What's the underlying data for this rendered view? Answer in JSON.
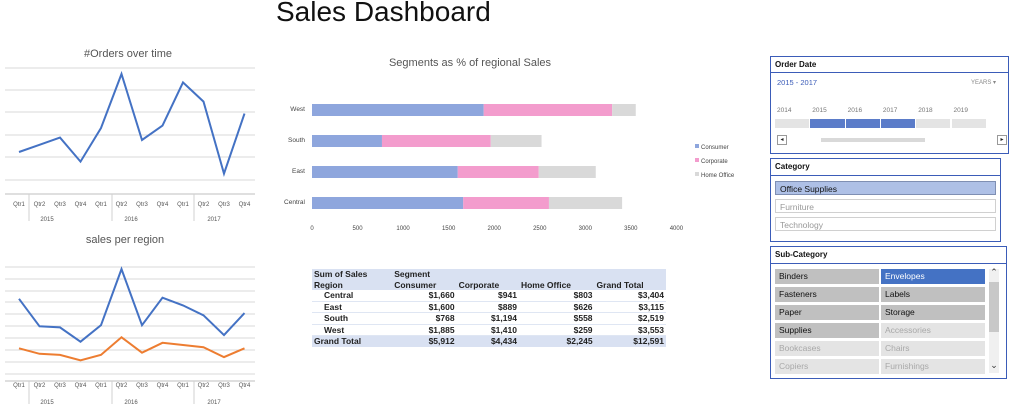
{
  "dashboard": {
    "title": "Sales Dashboard"
  },
  "colors": {
    "line_blue": "#4472c4",
    "line_orange": "#ed7d31",
    "consumer": "#8ea6dd",
    "corporate": "#f39ccd",
    "home_office": "#d9d9d9",
    "slicer_border": "#3b5cb8"
  },
  "orders_chart": {
    "title": "#Orders over time",
    "quarters": [
      "Qtr1",
      "Qtr2",
      "Qtr3",
      "Qtr4",
      "Qtr1",
      "Qtr2",
      "Qtr3",
      "Qtr4",
      "Qtr1",
      "Qtr2",
      "Qtr3",
      "Qtr4"
    ],
    "years": [
      "2015",
      "2016",
      "2017"
    ]
  },
  "region_chart": {
    "title": "sales per region",
    "quarters": [
      "Qtr1",
      "Qtr2",
      "Qtr3",
      "Qtr4",
      "Qtr1",
      "Qtr2",
      "Qtr3",
      "Qtr4",
      "Qtr1",
      "Qtr2",
      "Qtr3",
      "Qtr4"
    ],
    "years": [
      "2015",
      "2016",
      "2017"
    ]
  },
  "segments_chart": {
    "title": "Segments as % of regional Sales",
    "legend": [
      "Consumer",
      "Corporate",
      "Home Office"
    ]
  },
  "pivot": {
    "corner": "Sum of Sales",
    "col_field": "Segment",
    "row_field": "Region",
    "columns": [
      "Consumer",
      "Corporate",
      "Home Office",
      "Grand Total"
    ],
    "rows": [
      {
        "label": "Central",
        "values": [
          "$1,660",
          "$941",
          "$803",
          "$3,404"
        ]
      },
      {
        "label": "East",
        "values": [
          "$1,600",
          "$889",
          "$626",
          "$3,115"
        ]
      },
      {
        "label": "South",
        "values": [
          "$768",
          "$1,194",
          "$558",
          "$2,519"
        ]
      },
      {
        "label": "West",
        "values": [
          "$1,885",
          "$1,410",
          "$259",
          "$3,553"
        ]
      }
    ],
    "total": {
      "label": "Grand Total",
      "values": [
        "$5,912",
        "$4,434",
        "$2,245",
        "$12,591"
      ]
    }
  },
  "order_date_slicer": {
    "title": "Order Date",
    "range": "2015 - 2017",
    "level": "YEARS",
    "years": [
      "2014",
      "2015",
      "2016",
      "2017",
      "2018",
      "2019"
    ],
    "selected_years": [
      "2015",
      "2016",
      "2017"
    ]
  },
  "category_slicer": {
    "title": "Category",
    "items": [
      "Office Supplies",
      "Furniture",
      "Technology"
    ],
    "selected": "Office Supplies"
  },
  "subcategory_slicer": {
    "title": "Sub-Category",
    "items": [
      {
        "label": "Binders",
        "state": "on"
      },
      {
        "label": "Envelopes",
        "state": "sel"
      },
      {
        "label": "Fasteners",
        "state": "on"
      },
      {
        "label": "Labels",
        "state": "on"
      },
      {
        "label": "Paper",
        "state": "on"
      },
      {
        "label": "Storage",
        "state": "on"
      },
      {
        "label": "Supplies",
        "state": "on"
      },
      {
        "label": "Accessories",
        "state": "off"
      },
      {
        "label": "Bookcases",
        "state": "off"
      },
      {
        "label": "Chairs",
        "state": "off"
      },
      {
        "label": "Copiers",
        "state": "off"
      },
      {
        "label": "Furnishings",
        "state": "off"
      }
    ]
  },
  "chart_data": [
    {
      "type": "line",
      "title": "#Orders over time",
      "categories": [
        "2015 Qtr1",
        "2015 Qtr2",
        "2015 Qtr3",
        "2015 Qtr4",
        "2016 Qtr1",
        "2016 Qtr2",
        "2016 Qtr3",
        "2016 Qtr4",
        "2017 Qtr1",
        "2017 Qtr2",
        "2017 Qtr3",
        "2017 Qtr4"
      ],
      "series": [
        {
          "values": [
            0.3,
            0.36,
            0.42,
            0.22,
            0.5,
            0.95,
            0.4,
            0.52,
            0.88,
            0.72,
            0.12,
            0.62
          ]
        }
      ],
      "grid": true
    },
    {
      "type": "line",
      "title": "sales per region",
      "categories": [
        "2015 Qtr1",
        "2015 Qtr2",
        "2015 Qtr3",
        "2015 Qtr4",
        "2016 Qtr1",
        "2016 Qtr2",
        "2016 Qtr3",
        "2016 Qtr4",
        "2017 Qtr1",
        "2017 Qtr2",
        "2017 Qtr3",
        "2017 Qtr4"
      ],
      "series": [
        {
          "values": [
            0.72,
            0.47,
            0.46,
            0.33,
            0.48,
            0.99,
            0.48,
            0.73,
            0.66,
            0.57,
            0.39,
            0.59
          ]
        },
        {
          "values": [
            0.27,
            0.22,
            0.21,
            0.16,
            0.21,
            0.37,
            0.23,
            0.32,
            0.3,
            0.28,
            0.19,
            0.27
          ]
        }
      ],
      "grid": true
    },
    {
      "type": "bar",
      "orientation": "horizontal",
      "stacked": true,
      "title": "Segments as % of regional Sales",
      "categories": [
        "West",
        "South",
        "East",
        "Central"
      ],
      "series": [
        {
          "name": "Consumer",
          "values": [
            1885,
            768,
            1600,
            1660
          ]
        },
        {
          "name": "Corporate",
          "values": [
            1410,
            1194,
            889,
            941
          ]
        },
        {
          "name": "Home Office",
          "values": [
            259,
            558,
            626,
            803
          ]
        }
      ],
      "xticks": [
        "0",
        "500",
        "1000",
        "1500",
        "2000",
        "2500",
        "3000",
        "3500",
        "4000"
      ],
      "xlim": [
        0,
        4000
      ],
      "legend": "right"
    }
  ]
}
